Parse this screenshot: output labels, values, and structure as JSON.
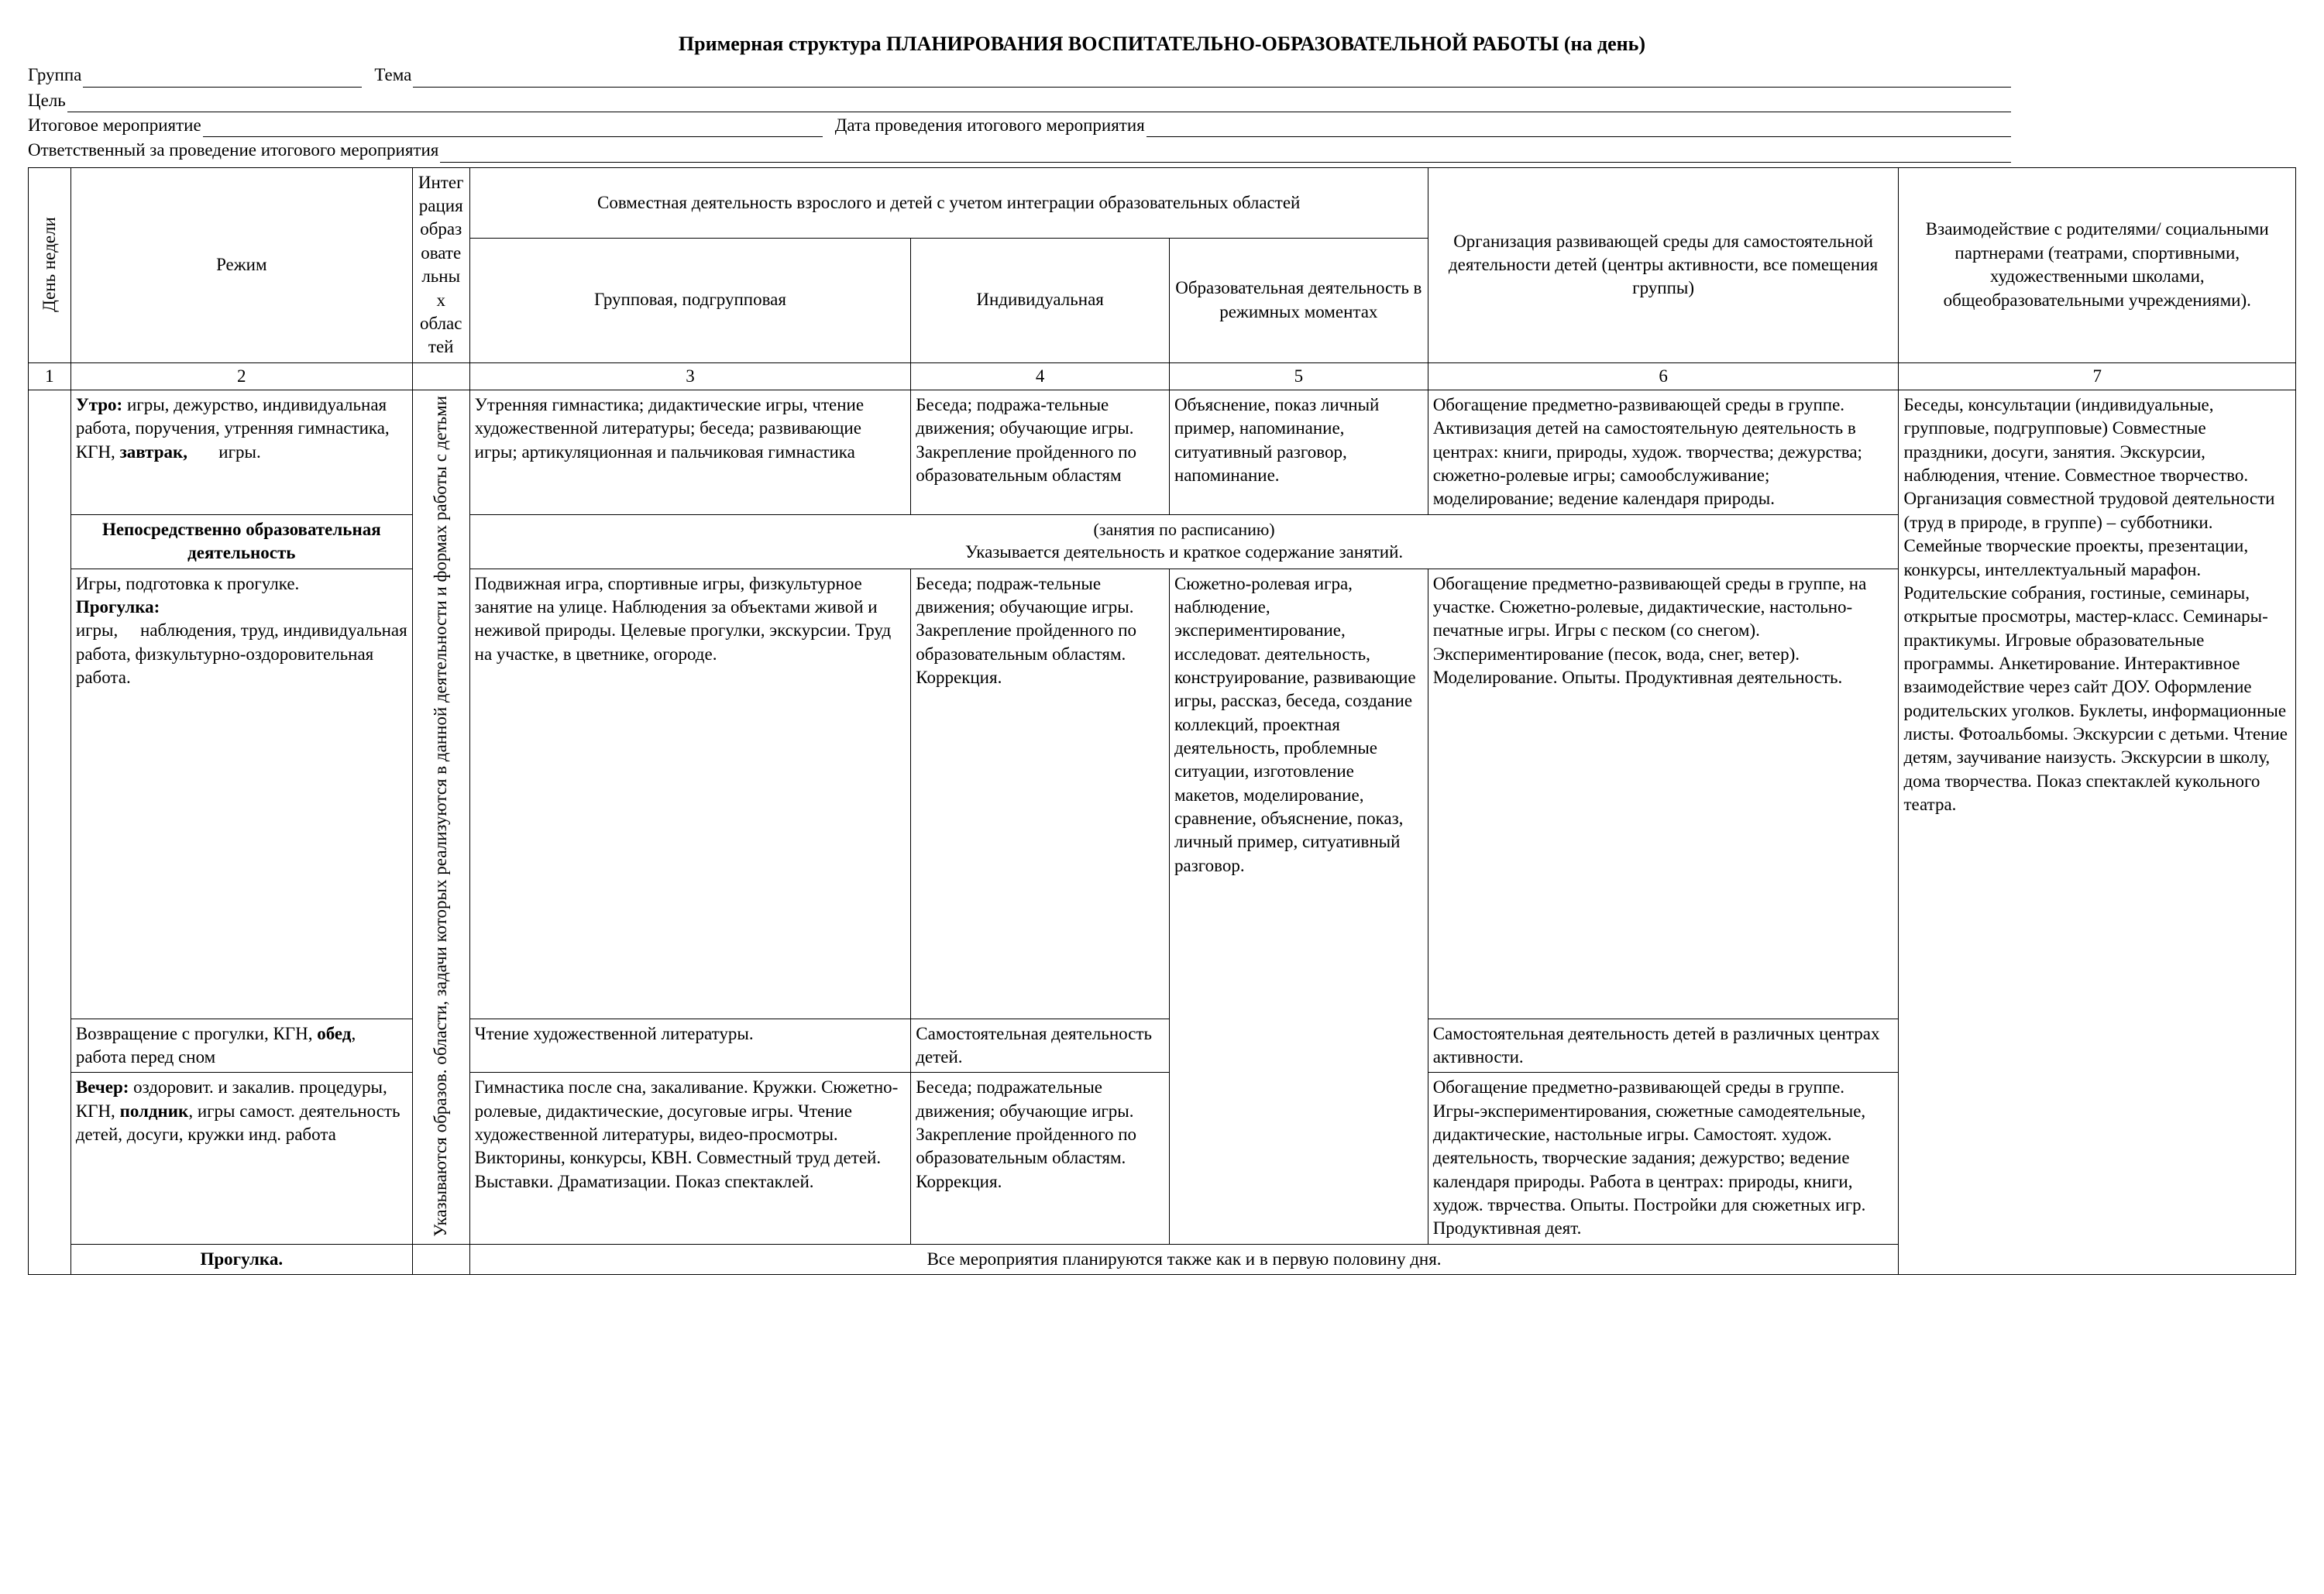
{
  "title": "Примерная структура  ПЛАНИРОВАНИЯ ВОСПИТАТЕЛЬНО-ОБРАЗОВАТЕЛЬНОЙ РАБОТЫ (на день)",
  "header": {
    "group": "Группа",
    "theme": "Тема",
    "goal": "Цель",
    "final_event": "Итоговое мероприятие",
    "final_event_date": "Дата проведения итогового мероприятия",
    "responsible": "Ответственный за проведение итогового мероприятия"
  },
  "columns": {
    "day": "День недели",
    "mode": "Режим",
    "integration": "Интеграция образовательных областей",
    "joint_activity": "Совместная деятельность взрослого и детей с учетом интеграции образовательных областей",
    "group_sub": "Групповая,\nподгрупповая",
    "individual": "Индивидуальная",
    "educational": "Образовательная деятельность в режимных моментах",
    "organization": "Организация развивающей среды для самостоятельной   деятельности детей (центры активности, все помещения группы)",
    "parents": "Взаимодействие с родителями/ социальными партнерами (театрами, спортивными, художественными школами, общеобразовательными учреждениями)."
  },
  "num": {
    "c1": "1",
    "c2": "2",
    "c3": "3",
    "c4": "4",
    "c5": "5",
    "c6": "6",
    "c7": "7"
  },
  "integration_vertical": "Указываются образов. области, задачи которых  реализуются в данной деятельности\nи формах работы с детьми",
  "rows": {
    "morning": {
      "mode_html": "<b>Утро:</b> игры, дежурство, индивидуальная работа, поручения,  утренняя гимнастика, КГН, <b>завтрак,</b>&nbsp;&nbsp;&nbsp;&nbsp;&nbsp;&nbsp;&nbsp;игры.",
      "group": "Утренняя гимнастика; дидактические игры, чтение художественной литературы; беседа; развивающие игры; артикуляционная и пальчиковая гимнастика",
      "individual": "Беседа; подража-тельные движения; обучающие игры. Закрепление пройденного по образовательным областям",
      "educational": "Объяснение, показ  личный пример, напоминание, ситуативный разговор, напоминание.",
      "organization": "Обогащение предметно-развивающей среды в группе.\nАктивизация детей на самостоятельную деятельность в центрах: книги, природы,  худож. творчества; дежурства; сюжетно-ролевые игры; самообслуживание; моделирование; ведение календаря природы."
    },
    "nod": {
      "mode_html": "<b>Непосредственно образовательная деятельность</b>",
      "content_sub": "(занятия по расписанию)",
      "content": "Указывается деятельность и краткое содержание занятий."
    },
    "walk": {
      "mode_html": "Игры, подготовка к прогулке.<br><b>Прогулка:</b><br>игры,&nbsp;&nbsp;&nbsp;&nbsp;&nbsp;наблюдения, труд, индивидуальная работа, физкультурно-оздоровительная  работа.",
      "group": "Подвижная игра, спортивные игры, физкультурное занятие на улице. Наблюдения за объектами живой и неживой природы.  Целевые прогулки, экскурсии. Труд на участке, в цветнике, огороде.",
      "individual": "Беседа; подраж-тельные движения; обучающие игры. Закрепление пройденного по образовательным областям. Коррекция.",
      "educational_merged": "Сюжетно-ролевая игра, наблюдение, экспериментирование, исследоват. деятельность, конструирование, развивающие игры, рассказ, беседа, создание коллекций, проектная деятельность, проблемные ситуации, изготовление макетов, моделирование, сравнение, объяснение, показ, личный пример, ситуативный разговор.",
      "organization": "Обогащение предметно-развивающей среды в группе, на участке.\nСюжетно-ролевые, дидактические, настольно-печатные игры. Игры с песком (со снегом).\nЭкспериментирование (песок, вода, снег, ветер). Моделирование. Опыты. Продуктивная деятельность."
    },
    "return": {
      "mode_html": "Возвращение с прогулки, КГН, <b>обед</b>, работа перед сном",
      "group": "Чтение художественной литературы.",
      "individual": "Самостоятельная деятельность детей.",
      "organization": "Самостоятельная деятельность детей в различных центрах активности."
    },
    "evening": {
      "mode_html": "<b>Вечер:</b> оздоровит. и закалив.  процедуры, КГН, <b>полдник</b>, игры самост. деятельность детей, досуги, кружки инд. работа",
      "group": "Гимнастика после сна, закаливание. Кружки. Сюжетно-ролевые, дидактические, досуговые  игры. Чтение художественной литературы, видео-просмотры. Викторины, конкурсы, КВН. Совместный труд детей. Выставки. Драматизации. Показ спектаклей.",
      "individual": "Беседа; подражательные движения; обучающие игры. Закрепление пройденного по образовательным областям. Коррекция.",
      "organization": "Обогащение предметно-развивающей среды в группе.\nИгры-экспериментирования, сюжетные самодеятельные, дидактические, настольные игры. Самостоят. худож. деятельность, творческие задания; дежурство; ведение календаря природы. Работа в центрах: природы, книги, худож. тврчества. Опыты. Постройки для сюжетных игр. Продуктивная деят."
    },
    "walk2": {
      "mode_html": "<b>Прогулка.</b>",
      "content": "Все мероприятия планируются  также как и в первую половину дня."
    },
    "parents": "Беседы, консультации (индивидуальные, групповые, подгрупповые) Совместные праздники, досуги,  занятия. Экскурсии, наблюдения, чтение. Совместное творчество.\nОрганизация совместной трудовой деятельности (труд в природе, в группе) – субботники. Семейные творческие проекты, презентации, конкурсы, интеллектуальный марафон.\nРодительские собрания, гостиные, семинары, открытые просмотры, мастер-класс. Семинары-практикумы. Игровые образовательные  программы. Анкетирование. Интерактивное взаимодействие через сайт ДОУ. Оформление родительских уголков. Буклеты, информационные листы. Фотоальбомы.\nЭкскурсии с детьми. Чтение детям, заучивание наизусть.\n\nЭкскурсии в школу, дома творчества. Показ спектаклей кукольного театра."
  }
}
